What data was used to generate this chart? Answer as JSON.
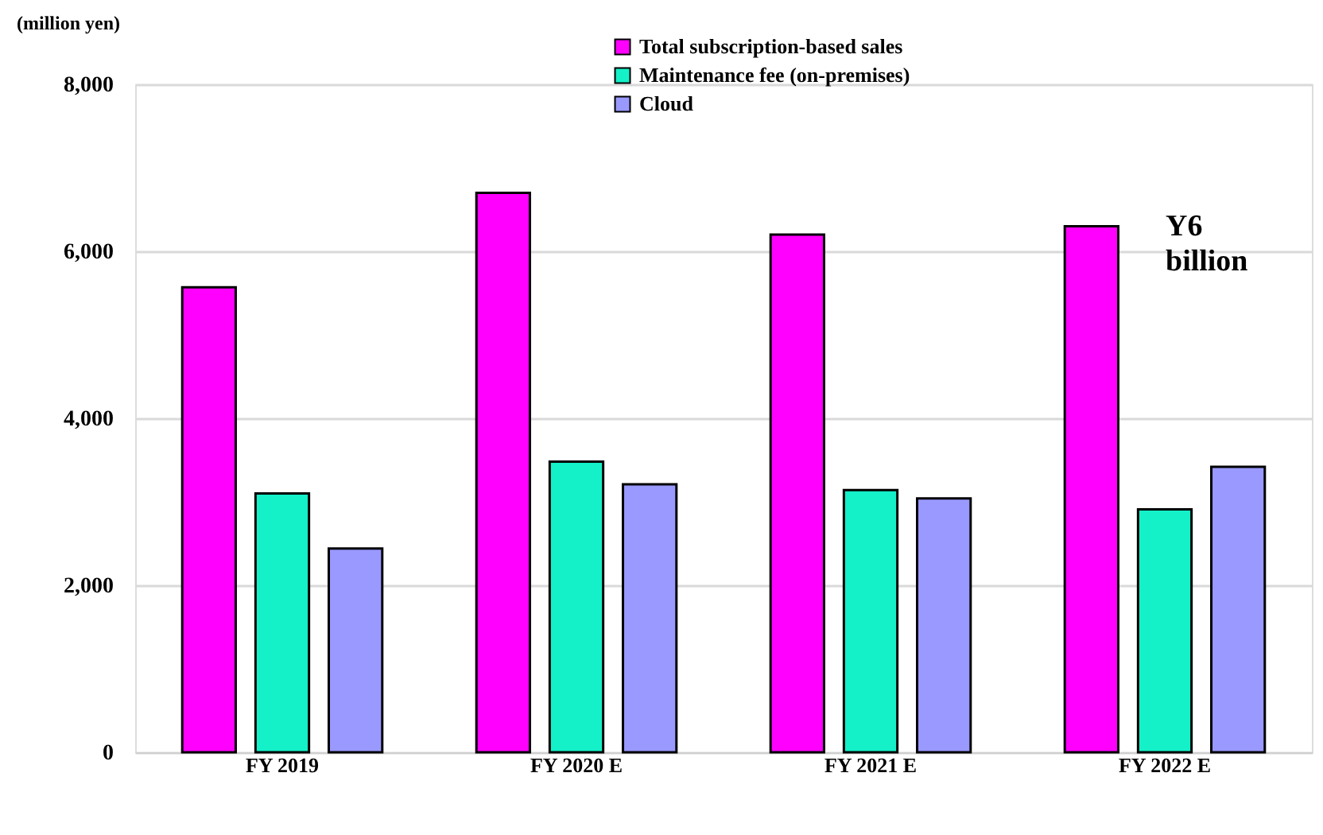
{
  "chart_data": {
    "type": "bar",
    "ylabel": "(million yen)",
    "categories": [
      "FY 2019",
      "FY 2020 E",
      "FY 2021 E",
      "FY 2022 E"
    ],
    "series": [
      {
        "name": "Total subscription-based sales",
        "color": "#ff00ff",
        "values": [
          5570,
          6700,
          6200,
          6300
        ]
      },
      {
        "name": "Maintenance fee (on-premises)",
        "color": "#14f0c8",
        "values": [
          3100,
          3480,
          3140,
          2910
        ]
      },
      {
        "name": "Cloud",
        "color": "#9999ff",
        "values": [
          2440,
          3210,
          3040,
          3420
        ]
      }
    ],
    "ylim": [
      0,
      8000
    ],
    "yticks": [
      {
        "value": 0,
        "label": "0"
      },
      {
        "value": 2000,
        "label": "2,000"
      },
      {
        "value": 4000,
        "label": "4,000"
      },
      {
        "value": 6000,
        "label": "6,000"
      },
      {
        "value": 8000,
        "label": "8,000"
      }
    ],
    "grid": "y",
    "legend": "top",
    "annotations": [
      "Y6\nbillion"
    ]
  }
}
